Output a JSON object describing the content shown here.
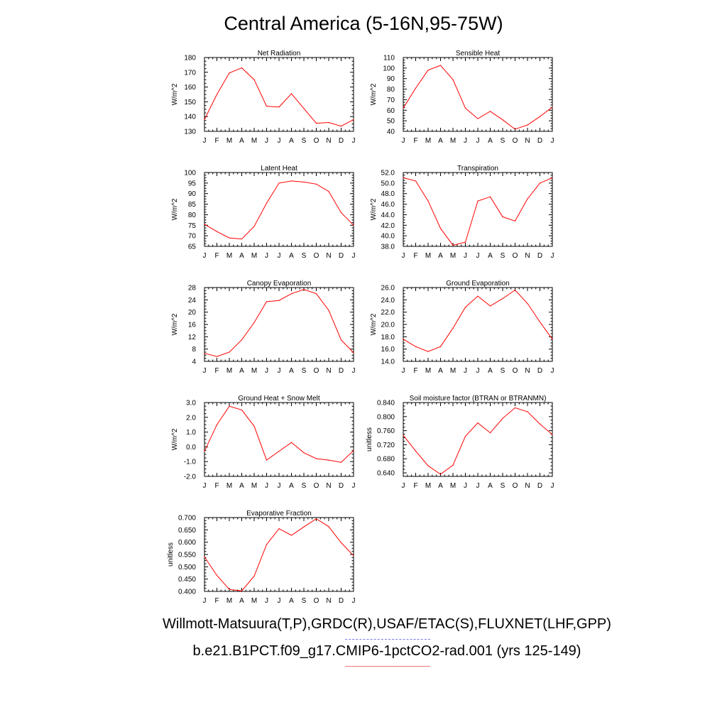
{
  "title": "Central America (5-16N,95-75W)",
  "legend": {
    "obs_label": "Willmott-Matsuura(T,P),GRDC(R),USAF/ETAC(S),FLUXNET(LHF,GPP)",
    "model_label": "b.e21.B1PCT.f09_g17.CMIP6-1pctCO2-rad.001 (yrs 125-149)",
    "obs_color": "#7777ee",
    "model_color": "#ee7777"
  },
  "line_color": "#ff0000",
  "chart_data": [
    {
      "type": "line",
      "title": "Net Radiation",
      "ylabel": "W/m^2",
      "x": [
        "J",
        "F",
        "M",
        "A",
        "M",
        "J",
        "J",
        "A",
        "S",
        "O",
        "N",
        "D",
        "J"
      ],
      "ylim": [
        130,
        180
      ],
      "yticks": [
        "130",
        "140",
        "150",
        "160",
        "170",
        "180"
      ],
      "series": [
        {
          "values": [
            138,
            155,
            169.5,
            173,
            165,
            147,
            146.5,
            155.5,
            145.5,
            135.5,
            136,
            133.5,
            138
          ]
        }
      ]
    },
    {
      "type": "line",
      "title": "Sensible Heat",
      "ylabel": "W/m^2",
      "x": [
        "J",
        "F",
        "M",
        "A",
        "M",
        "J",
        "J",
        "A",
        "S",
        "O",
        "N",
        "D",
        "J"
      ],
      "ylim": [
        40,
        110
      ],
      "yticks": [
        "40",
        "50",
        "60",
        "70",
        "80",
        "90",
        "100",
        "110"
      ],
      "series": [
        {
          "values": [
            62,
            81,
            98,
            102.5,
            89,
            62,
            52,
            59,
            51,
            42,
            46,
            54,
            63
          ]
        }
      ]
    },
    {
      "type": "line",
      "title": "Latent Heat",
      "ylabel": "W/m^2",
      "x": [
        "J",
        "F",
        "M",
        "A",
        "M",
        "J",
        "J",
        "A",
        "S",
        "O",
        "N",
        "D",
        "J"
      ],
      "ylim": [
        65,
        100
      ],
      "yticks": [
        "65",
        "70",
        "75",
        "80",
        "85",
        "90",
        "95",
        "100"
      ],
      "series": [
        {
          "values": [
            75.5,
            72,
            69,
            68.5,
            74.5,
            85.5,
            95,
            96,
            95.5,
            94.5,
            91,
            81,
            75
          ]
        }
      ]
    },
    {
      "type": "line",
      "title": "Transpiration",
      "ylabel": "W/m^2",
      "x": [
        "J",
        "F",
        "M",
        "A",
        "M",
        "J",
        "J",
        "A",
        "S",
        "O",
        "N",
        "D",
        "J"
      ],
      "ylim": [
        38,
        52
      ],
      "yticks": [
        "38.0",
        "40.0",
        "42.0",
        "44.0",
        "46.0",
        "48.0",
        "50.0",
        "52.0"
      ],
      "series": [
        {
          "values": [
            51,
            50.4,
            46.6,
            41.4,
            38.2,
            38.8,
            46.6,
            47.4,
            43.6,
            42.8,
            47,
            50,
            51
          ]
        }
      ]
    },
    {
      "type": "line",
      "title": "Canopy Evaporation",
      "ylabel": "W/m^2",
      "x": [
        "J",
        "F",
        "M",
        "A",
        "M",
        "J",
        "J",
        "A",
        "S",
        "O",
        "N",
        "D",
        "J"
      ],
      "ylim": [
        4,
        28
      ],
      "yticks": [
        "4",
        "8",
        "12",
        "16",
        "20",
        "24",
        "28"
      ],
      "series": [
        {
          "values": [
            6.6,
            5.6,
            7,
            11,
            16.6,
            23.4,
            23.8,
            26,
            27.4,
            26,
            20.6,
            11,
            6.8
          ]
        }
      ]
    },
    {
      "type": "line",
      "title": "Ground Evaporation",
      "ylabel": "W/m^2",
      "x": [
        "J",
        "F",
        "M",
        "A",
        "M",
        "J",
        "J",
        "A",
        "S",
        "O",
        "N",
        "D",
        "J"
      ],
      "ylim": [
        14,
        26
      ],
      "yticks": [
        "14.0",
        "16.0",
        "18.0",
        "20.0",
        "22.0",
        "24.0",
        "26.0"
      ],
      "series": [
        {
          "values": [
            17.6,
            16.4,
            15.6,
            16.4,
            19.4,
            22.8,
            24.6,
            23,
            24.2,
            25.6,
            23.4,
            20.4,
            17.6
          ]
        }
      ]
    },
    {
      "type": "line",
      "title": "Ground Heat + Snow Melt",
      "ylabel": "W/m^2",
      "x": [
        "J",
        "F",
        "M",
        "A",
        "M",
        "J",
        "J",
        "A",
        "S",
        "O",
        "N",
        "D",
        "J"
      ],
      "ylim": [
        -2,
        3
      ],
      "yticks": [
        "-2.0",
        "-1.0",
        "0.0",
        "1.0",
        "2.0",
        "3.0"
      ],
      "series": [
        {
          "values": [
            -0.3,
            1.5,
            2.75,
            2.5,
            1.4,
            -0.9,
            -0.3,
            0.3,
            -0.4,
            -0.8,
            -0.9,
            -1.05,
            -0.25
          ]
        }
      ]
    },
    {
      "type": "line",
      "title": "Soil moisture factor (BTRAN or BTRANMN)",
      "ylabel": "unitless",
      "x": [
        "J",
        "F",
        "M",
        "A",
        "M",
        "J",
        "J",
        "A",
        "S",
        "O",
        "N",
        "D",
        "J"
      ],
      "ylim": [
        0.63,
        0.84
      ],
      "yticks": [
        "0.640",
        "0.680",
        "0.720",
        "0.760",
        "0.800",
        "0.840"
      ],
      "series": [
        {
          "values": [
            0.747,
            0.702,
            0.66,
            0.636,
            0.662,
            0.744,
            0.782,
            0.754,
            0.795,
            0.825,
            0.814,
            0.779,
            0.749
          ]
        }
      ]
    },
    {
      "type": "line",
      "title": "Evaporative Fraction",
      "ylabel": "unitless",
      "x": [
        "J",
        "F",
        "M",
        "A",
        "M",
        "J",
        "J",
        "A",
        "S",
        "O",
        "N",
        "D",
        "J"
      ],
      "ylim": [
        0.4,
        0.7
      ],
      "yticks": [
        "0.400",
        "0.450",
        "0.500",
        "0.550",
        "0.600",
        "0.650",
        "0.700"
      ],
      "series": [
        {
          "values": [
            0.54,
            0.465,
            0.408,
            0.402,
            0.462,
            0.59,
            0.655,
            0.628,
            0.662,
            0.695,
            0.663,
            0.598,
            0.545
          ]
        }
      ]
    }
  ]
}
